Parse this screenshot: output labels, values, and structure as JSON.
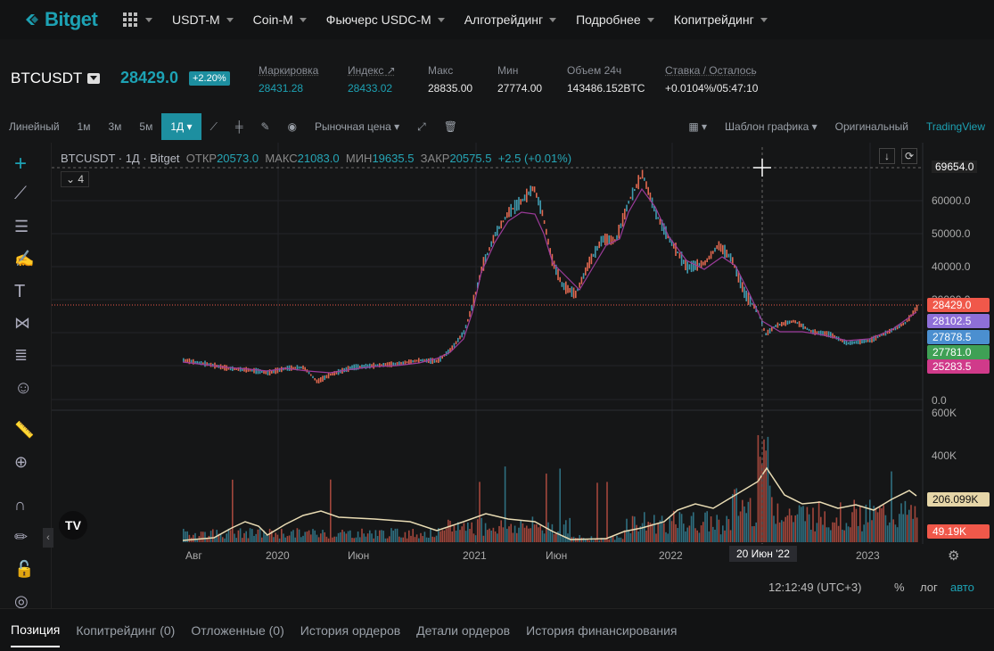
{
  "nav": {
    "logo": "Bitget",
    "items": [
      "USDT-M",
      "Coin-M",
      "Фьючерс USDC-M",
      "Алготрейдинг",
      "Подробнее",
      "Копитрейдинг"
    ]
  },
  "ticker": {
    "symbol": "BTCUSDT",
    "price": "28429.0",
    "change": "+2.20%",
    "stats": [
      {
        "label": "Маркировка",
        "value": "28431.28"
      },
      {
        "label": "Индекс",
        "value": "28433.02"
      },
      {
        "label": "Макс",
        "value": "28835.00"
      },
      {
        "label": "Мин",
        "value": "27774.00"
      },
      {
        "label": "Объем 24ч",
        "value": "143486.152BTC"
      },
      {
        "label": "Ставка / Осталось",
        "value": "+0.0104%/05:47:10"
      }
    ]
  },
  "toolbar": {
    "intervals": [
      "Линейный",
      "1м",
      "3м",
      "5м",
      "1Д"
    ],
    "price_type": "Рыночная цена",
    "template": "Шаблон графика",
    "original": "Оригинальный",
    "tradingview": "TradingView"
  },
  "chart": {
    "legend": {
      "title": "BTCUSDT · 1Д · Bitget",
      "open_l": "ОТКР",
      "open": "20573.0",
      "high_l": "МАКС",
      "high": "21083.0",
      "low_l": "МИН",
      "low": "19635.5",
      "close_l": "ЗАКР",
      "close": "20575.5",
      "chg": "+2.5 (+0.01%)"
    },
    "indicators_count": "4",
    "yticks": [
      "60000.0",
      "50000.0",
      "40000.0",
      "30000.0",
      "0.0"
    ],
    "crosshair_price": "69654.0",
    "price_tags": [
      {
        "v": "28429.0",
        "c": "#f0584a"
      },
      {
        "v": "28102.5",
        "c": "#8e6fd8"
      },
      {
        "v": "27878.5",
        "c": "#4b8fd0"
      },
      {
        "v": "27781.0",
        "c": "#3fa055"
      },
      {
        "v": "25283.5",
        "c": "#d03a8a"
      }
    ],
    "vol_ticks": [
      "600K",
      "400K"
    ],
    "vol_tags": [
      {
        "v": "206.099K",
        "c": "#e6d6a8"
      },
      {
        "v": "49.19K",
        "c": "#f0584a"
      }
    ],
    "xticks": [
      "Авг",
      "2020",
      "Июн",
      "2021",
      "Июн",
      "2022",
      "2023"
    ],
    "crosshair_date": "20 Июн '22"
  },
  "timebar": {
    "time": "12:12:49 (UTC+3)",
    "pct": "%",
    "log": "лог",
    "auto": "авто"
  },
  "tabs": [
    "Позиция",
    "Копитрейдинг (0)",
    "Отложенные (0)",
    "История ордеров",
    "Детали ордеров",
    "История финансирования"
  ]
}
